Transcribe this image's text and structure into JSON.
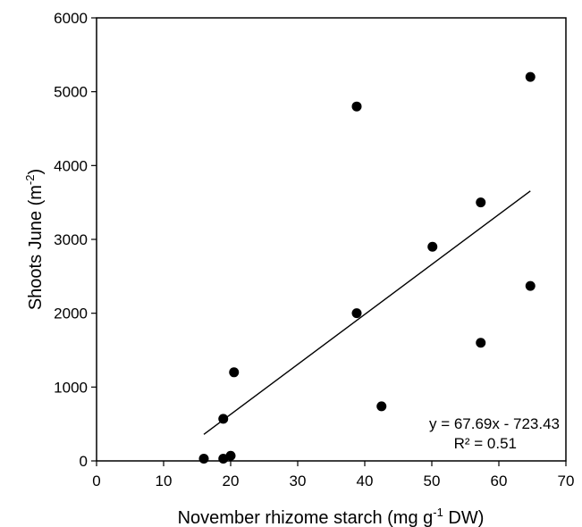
{
  "chart_data": {
    "type": "scatter",
    "title": "",
    "xlabel_parts": {
      "pre": "November rhizome starch (mg g",
      "sup": "-1",
      "post": " DW)"
    },
    "ylabel_parts": {
      "pre": "Shoots June (m",
      "sup": "-2",
      "post": ")"
    },
    "xlim": [
      0,
      70
    ],
    "ylim": [
      0,
      6000
    ],
    "xticks": [
      0,
      10,
      20,
      30,
      40,
      50,
      60,
      70
    ],
    "yticks": [
      0,
      1000,
      2000,
      3000,
      4000,
      5000,
      6000
    ],
    "grid": false,
    "legend": "none",
    "points": [
      {
        "x": 16.0,
        "y": 30
      },
      {
        "x": 18.9,
        "y": 30
      },
      {
        "x": 20.0,
        "y": 70
      },
      {
        "x": 18.9,
        "y": 570
      },
      {
        "x": 20.5,
        "y": 1200
      },
      {
        "x": 38.8,
        "y": 2000
      },
      {
        "x": 38.8,
        "y": 4800
      },
      {
        "x": 42.5,
        "y": 740
      },
      {
        "x": 50.1,
        "y": 2900
      },
      {
        "x": 57.3,
        "y": 3500
      },
      {
        "x": 57.3,
        "y": 1600
      },
      {
        "x": 64.7,
        "y": 5200
      },
      {
        "x": 64.7,
        "y": 2370
      }
    ],
    "trendline": {
      "slope": 67.69,
      "intercept": -723.43,
      "x_range": [
        16.0,
        64.7
      ]
    },
    "annotations": {
      "equation": "y = 67.69x - 723.43",
      "r2": "R² = 0.51"
    },
    "colors": {
      "points": "#000000",
      "line": "#000000",
      "axes": "#000000"
    }
  }
}
